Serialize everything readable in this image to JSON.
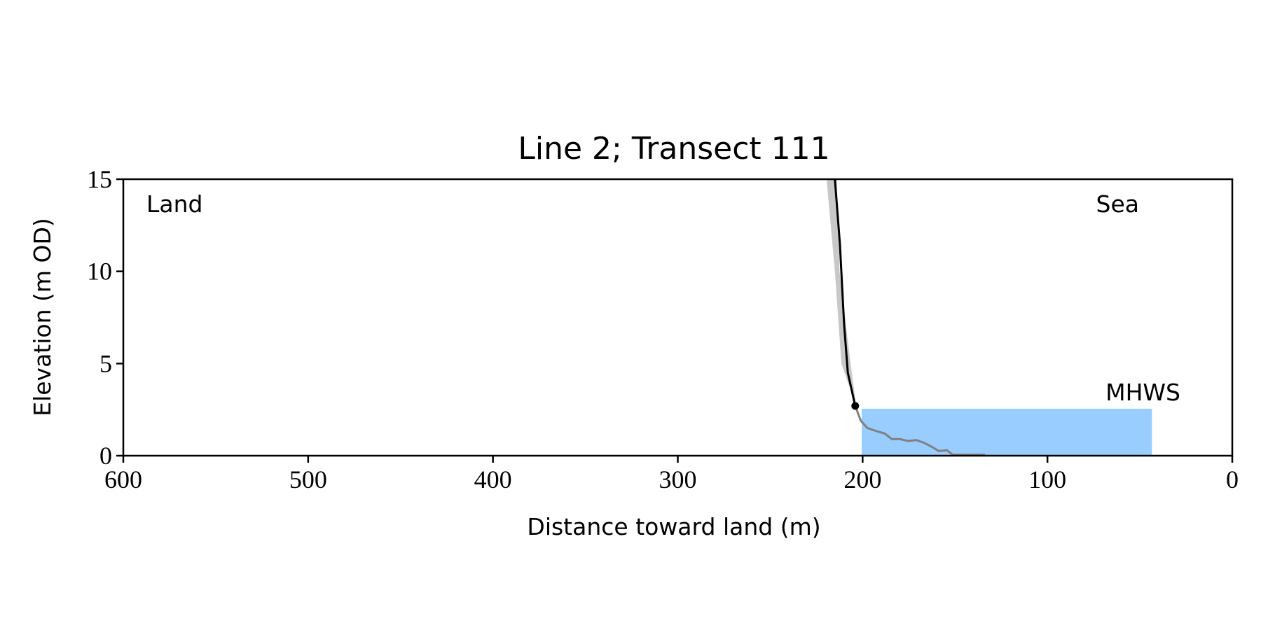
{
  "chart_data": {
    "type": "line",
    "title": "Line 2; Transect 111",
    "x_label": "Distance toward land (m)",
    "y_label": "Elevation (m OD)",
    "annotations": {
      "land": "Land",
      "sea": "Sea",
      "mhws": "MHWS"
    },
    "xlim": [
      600,
      0
    ],
    "xticks": [
      600,
      500,
      400,
      300,
      200,
      100,
      0
    ],
    "ylim": [
      0,
      15
    ],
    "yticks": [
      0,
      5,
      10,
      15
    ],
    "band": {
      "color": "#c8c8c8",
      "y": [
        15,
        10,
        5,
        2.7
      ],
      "x_outer": [
        219.5,
        215,
        211.5,
        203.5
      ],
      "x_inner": [
        214,
        212.5,
        206.5,
        203.5
      ]
    },
    "mhws": {
      "color": "#99ccff",
      "label_color": "#6699cc",
      "level": 2.55,
      "x_range": [
        200.5,
        43.5
      ]
    },
    "series": [
      {
        "color": "#000000",
        "x": [
          215,
          212.3,
          210,
          208,
          206,
          204
        ],
        "values": [
          15,
          11.5,
          7.1,
          4.5,
          3.6,
          2.7
        ]
      },
      {
        "color": "#808080",
        "x": [
          204,
          201,
          197.4,
          193,
          188,
          184.2,
          179.8,
          175.4,
          171,
          166.7,
          162,
          158.8,
          154.4,
          151.3,
          133.8
        ],
        "values": [
          2.7,
          1.9,
          1.5,
          1.35,
          1.2,
          0.9,
          0.9,
          0.8,
          0.85,
          0.7,
          0.45,
          0.25,
          0.3,
          0.05,
          0.05
        ]
      }
    ],
    "point": {
      "color": "#000000",
      "x": 204,
      "y": 2.7
    }
  }
}
